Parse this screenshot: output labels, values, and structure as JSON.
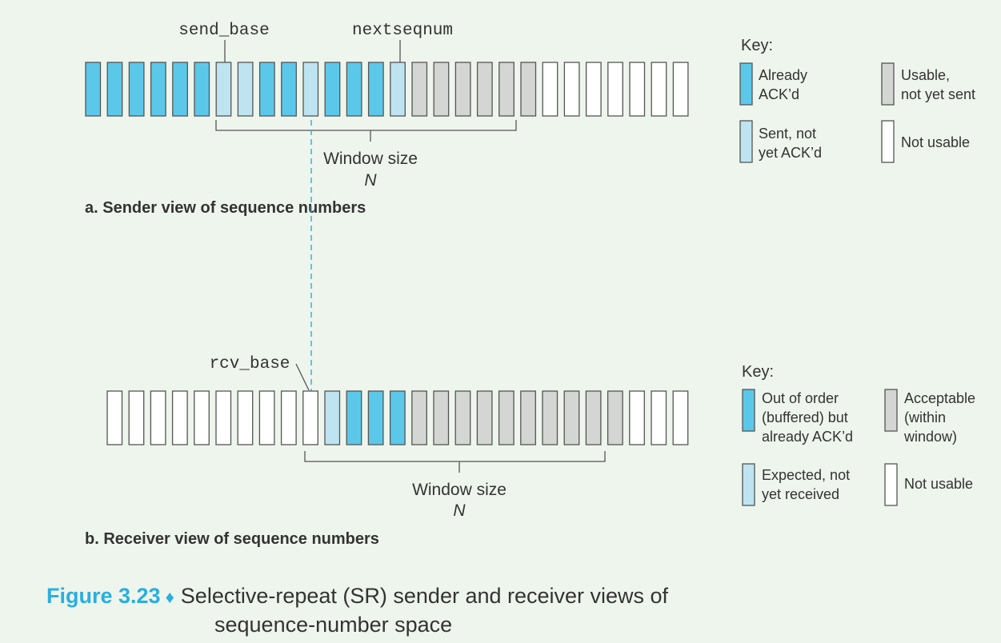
{
  "colors": {
    "background": "#eef5ec",
    "already_acked": "#5bc8ea",
    "sent_not_acked": "#bde4f0",
    "usable": "#d3d6d2",
    "not_usable": "#ffffff",
    "dashed_line": "#3ab0de",
    "figure_accent": "#2aaee0"
  },
  "sender": {
    "send_base_label": "send_base",
    "nextseqnum_label": "nextseqnum",
    "boxes": [
      "acked",
      "acked",
      "acked",
      "acked",
      "acked",
      "acked",
      "sent",
      "sent",
      "acked",
      "acked",
      "sent",
      "acked",
      "acked",
      "acked",
      "sent",
      "usable",
      "usable",
      "usable",
      "usable",
      "usable",
      "usable",
      "free",
      "free",
      "free",
      "free",
      "free",
      "free",
      "free"
    ],
    "window_label": "Window size",
    "window_symbol": "N",
    "title": "a. Sender view of sequence numbers"
  },
  "receiver": {
    "rcv_base_label": "rcv_base",
    "boxes": [
      "free",
      "free",
      "free",
      "free",
      "free",
      "free",
      "free",
      "free",
      "free",
      "free",
      "expected",
      "ooo",
      "ooo",
      "ooo",
      "acceptable",
      "acceptable",
      "acceptable",
      "acceptable",
      "acceptable",
      "acceptable",
      "acceptable",
      "acceptable",
      "acceptable",
      "acceptable",
      "free",
      "free",
      "free"
    ],
    "window_label": "Window size",
    "window_symbol": "N",
    "title": "b. Receiver view of sequence numbers"
  },
  "sender_key": {
    "heading": "Key:",
    "already_acked_line1": "Already",
    "already_acked_line2": "ACK’d",
    "usable_line1": "Usable,",
    "usable_line2": "not yet sent",
    "sent_line1": "Sent, not",
    "sent_line2": "yet ACK’d",
    "not_usable": "Not usable"
  },
  "receiver_key": {
    "heading": "Key:",
    "ooo_line1": "Out of order",
    "ooo_line2": "(buffered) but",
    "ooo_line3": "already ACK’d",
    "acceptable_line1": "Acceptable",
    "acceptable_line2": "(within",
    "acceptable_line3": "window)",
    "expected_line1": "Expected, not",
    "expected_line2": "yet received",
    "not_usable": "Not usable"
  },
  "caption": {
    "figure_number": "Figure 3.23",
    "diamond": "♦",
    "text_line1": "Selective-repeat (SR) sender and receiver views of",
    "text_line2": "sequence-number space"
  }
}
